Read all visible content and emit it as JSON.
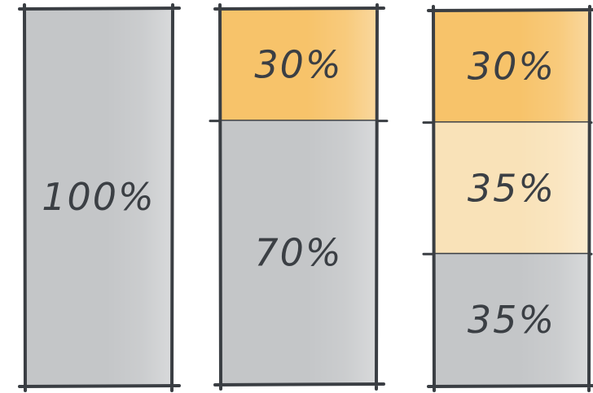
{
  "bars": [
    {
      "segments": [
        {
          "label": "100%",
          "fraction": 1.0,
          "color": "#c4c6c8"
        }
      ]
    },
    {
      "segments": [
        {
          "label": "30%",
          "fraction": 0.3,
          "color": "#f7c36a"
        },
        {
          "label": "70%",
          "fraction": 0.7,
          "color": "#c4c6c8"
        }
      ]
    },
    {
      "segments": [
        {
          "label": "30%",
          "fraction": 0.3,
          "color": "#f7c36a"
        },
        {
          "label": "35%",
          "fraction": 0.35,
          "color": "#f9e2b8"
        },
        {
          "label": "35%",
          "fraction": 0.35,
          "color": "#c4c6c8"
        }
      ]
    }
  ]
}
